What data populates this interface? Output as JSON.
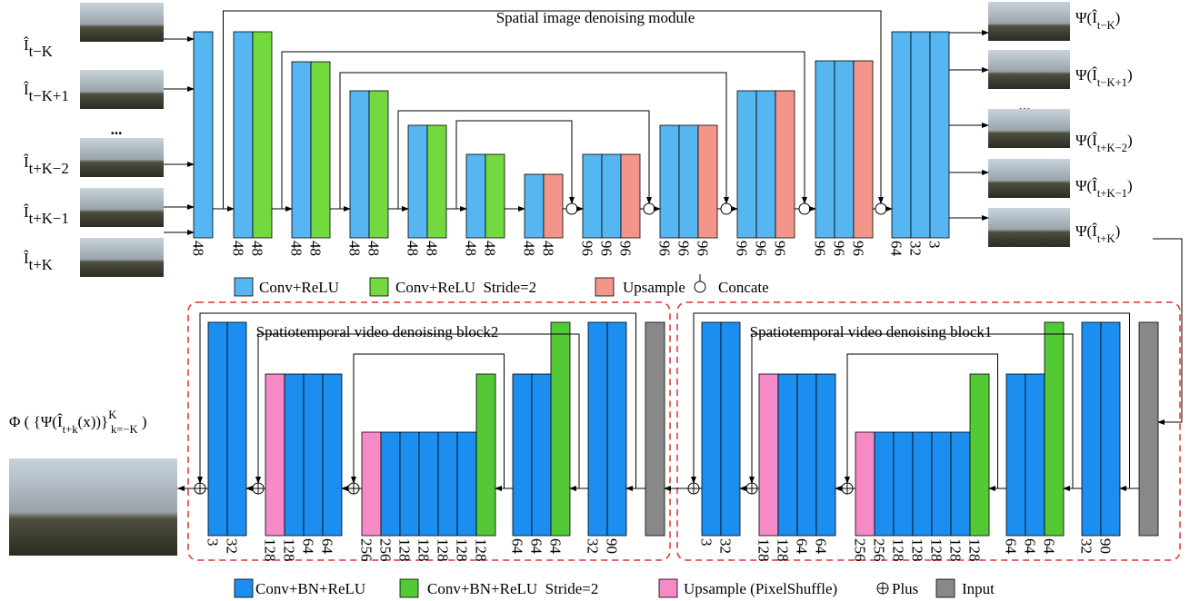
{
  "top": {
    "title": "Spatial image denoising module",
    "ellipsis": "...",
    "inputs": [
      [
        {
          "text": "Î"
        },
        {
          "sub": "t−K"
        }
      ],
      [
        {
          "text": "Î"
        },
        {
          "sub": "t−K+1"
        }
      ],
      [
        {
          "text": "Î"
        },
        {
          "sub": "t+K−2"
        }
      ],
      [
        {
          "text": "Î"
        },
        {
          "sub": "t+K−1"
        }
      ],
      [
        {
          "text": "Î"
        },
        {
          "sub": "t+K"
        }
      ]
    ],
    "outputs": [
      [
        {
          "text": "Ψ(Î"
        },
        {
          "sub": "t−K"
        },
        {
          "text": ")"
        }
      ],
      [
        {
          "text": "Ψ(Î"
        },
        {
          "sub": "t−K+1"
        },
        {
          "text": ")"
        }
      ],
      [
        {
          "text": "Ψ(Î"
        },
        {
          "sub": "t+K−2"
        },
        {
          "text": ")"
        }
      ],
      [
        {
          "text": "Ψ(Î"
        },
        {
          "sub": "t+K−1"
        },
        {
          "text": ")"
        }
      ],
      [
        {
          "text": "Ψ(Î"
        },
        {
          "sub": "t+K"
        },
        {
          "text": ")"
        }
      ]
    ],
    "blocks": [
      {
        "layers": [
          {
            "color": "#56b6f2",
            "channels": 48
          }
        ]
      },
      {
        "layers": [
          {
            "color": "#56b6f2",
            "channels": 48
          },
          {
            "color": "#72d93e",
            "channels": 48
          }
        ]
      },
      {
        "layers": [
          {
            "color": "#56b6f2",
            "channels": 48
          },
          {
            "color": "#72d93e",
            "channels": 48
          }
        ]
      },
      {
        "layers": [
          {
            "color": "#56b6f2",
            "channels": 48
          },
          {
            "color": "#72d93e",
            "channels": 48
          }
        ]
      },
      {
        "layers": [
          {
            "color": "#56b6f2",
            "channels": 48
          },
          {
            "color": "#72d93e",
            "channels": 48
          }
        ]
      },
      {
        "layers": [
          {
            "color": "#56b6f2",
            "channels": 48
          },
          {
            "color": "#72d93e",
            "channels": 48
          }
        ]
      },
      {
        "layers": [
          {
            "color": "#56b6f2",
            "channels": 48
          },
          {
            "color": "#f4958c",
            "channels": 48
          }
        ]
      },
      {
        "layers": [
          {
            "color": "#56b6f2",
            "channels": 96
          },
          {
            "color": "#56b6f2",
            "channels": 96
          },
          {
            "color": "#f4958c",
            "channels": 96
          }
        ]
      },
      {
        "layers": [
          {
            "color": "#56b6f2",
            "channels": 96
          },
          {
            "color": "#56b6f2",
            "channels": 96
          },
          {
            "color": "#f4958c",
            "channels": 96
          }
        ]
      },
      {
        "layers": [
          {
            "color": "#56b6f2",
            "channels": 96
          },
          {
            "color": "#56b6f2",
            "channels": 96
          },
          {
            "color": "#f4958c",
            "channels": 96
          }
        ]
      },
      {
        "layers": [
          {
            "color": "#56b6f2",
            "channels": 96
          },
          {
            "color": "#56b6f2",
            "channels": 96
          },
          {
            "color": "#f4958c",
            "channels": 96
          }
        ]
      },
      {
        "layers": [
          {
            "color": "#56b6f2",
            "channels": 64
          },
          {
            "color": "#56b6f2",
            "channels": 32
          },
          {
            "color": "#56b6f2",
            "channels": 3
          }
        ]
      }
    ],
    "legend": [
      {
        "color": "#56b6f2",
        "label": "Conv+ReLU"
      },
      {
        "color": "#72d93e",
        "label": "Conv+ReLU  Stride=2"
      },
      {
        "color": "#f4958c",
        "label": "Upsample"
      },
      {
        "label": "Concate"
      }
    ]
  },
  "bottom": {
    "output": [
      {
        "text": "Φ ( {Ψ(Î"
      },
      {
        "sub": "t+k"
      },
      {
        "text": "(x))}"
      },
      {
        "sup": "K"
      },
      {
        "sub": "k=−K"
      },
      {
        "text": " )"
      }
    ],
    "modules": [
      {
        "title": "Spatiotemporal video denoising block2",
        "blocks": [
          {
            "layers": [
              {
                "color": "#1b8ef0",
                "channels": 3
              },
              {
                "color": "#1b8ef0",
                "channels": 32
              }
            ]
          },
          {
            "layers": [
              {
                "color": "#f58ac6",
                "channels": 128
              },
              {
                "color": "#1b8ef0",
                "channels": 128
              },
              {
                "color": "#1b8ef0",
                "channels": 64
              },
              {
                "color": "#1b8ef0",
                "channels": 64
              }
            ]
          },
          {
            "layers": [
              {
                "color": "#f58ac6",
                "channels": 256
              },
              {
                "color": "#1b8ef0",
                "channels": 256
              },
              {
                "color": "#1b8ef0",
                "channels": 128
              },
              {
                "color": "#1b8ef0",
                "channels": 128
              },
              {
                "color": "#1b8ef0",
                "channels": 128
              },
              {
                "color": "#1b8ef0",
                "channels": 128
              },
              {
                "color": "#53c935",
                "channels": 128
              }
            ]
          },
          {
            "layers": [
              {
                "color": "#1b8ef0",
                "channels": 64
              },
              {
                "color": "#1b8ef0",
                "channels": 64
              },
              {
                "color": "#53c935",
                "channels": 64
              }
            ]
          },
          {
            "layers": [
              {
                "color": "#1b8ef0",
                "channels": 32
              },
              {
                "color": "#1b8ef0",
                "channels": 90
              }
            ]
          },
          {
            "layers": [
              {
                "color": "#888888"
              }
            ]
          }
        ]
      },
      {
        "title": "Spatiotemporal video denoising block1",
        "blocks": [
          {
            "layers": [
              {
                "color": "#1b8ef0",
                "channels": 3
              },
              {
                "color": "#1b8ef0",
                "channels": 32
              }
            ]
          },
          {
            "layers": [
              {
                "color": "#f58ac6",
                "channels": 128
              },
              {
                "color": "#1b8ef0",
                "channels": 128
              },
              {
                "color": "#1b8ef0",
                "channels": 64
              },
              {
                "color": "#1b8ef0",
                "channels": 64
              }
            ]
          },
          {
            "layers": [
              {
                "color": "#f58ac6",
                "channels": 256
              },
              {
                "color": "#1b8ef0",
                "channels": 256
              },
              {
                "color": "#1b8ef0",
                "channels": 128
              },
              {
                "color": "#1b8ef0",
                "channels": 128
              },
              {
                "color": "#1b8ef0",
                "channels": 128
              },
              {
                "color": "#1b8ef0",
                "channels": 128
              },
              {
                "color": "#53c935",
                "channels": 128
              }
            ]
          },
          {
            "layers": [
              {
                "color": "#1b8ef0",
                "channels": 64
              },
              {
                "color": "#1b8ef0",
                "channels": 64
              },
              {
                "color": "#53c935",
                "channels": 64
              }
            ]
          },
          {
            "layers": [
              {
                "color": "#1b8ef0",
                "channels": 32
              },
              {
                "color": "#1b8ef0",
                "channels": 90
              }
            ]
          },
          {
            "layers": [
              {
                "color": "#888888"
              }
            ]
          }
        ]
      }
    ],
    "legend": [
      {
        "color": "#1b8ef0",
        "label": "Conv+BN+ReLU"
      },
      {
        "color": "#53c935",
        "label": "Conv+BN+ReLU  Stride=2"
      },
      {
        "color": "#f58ac6",
        "label": "Upsample (PixelShuffle)"
      },
      {
        "label": "Plus"
      },
      {
        "color": "#888888",
        "label": "Input"
      }
    ]
  }
}
